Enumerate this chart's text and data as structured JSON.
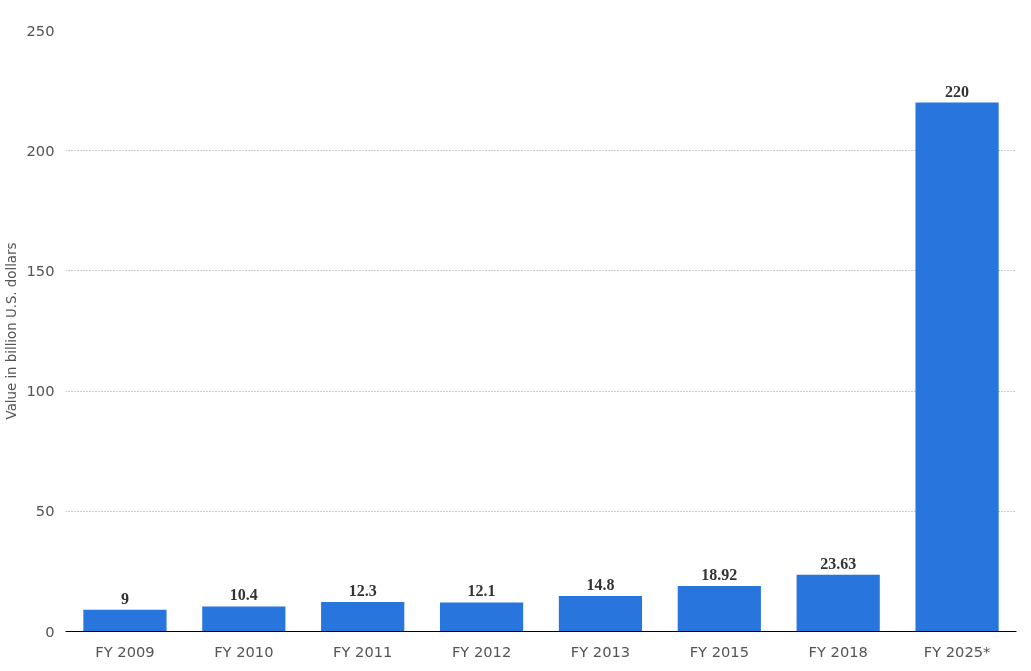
{
  "chart_data": {
    "type": "bar",
    "ylabel": "Value in billion U.S. dollars",
    "categories": [
      "FY 2009",
      "FY 2010",
      "FY 2011",
      "FY 2012",
      "FY 2013",
      "FY 2015",
      "FY 2018",
      "FY 2025*"
    ],
    "values": [
      9,
      10.4,
      12.3,
      12.1,
      14.8,
      18.92,
      23.63,
      220
    ],
    "color": "#2876dd",
    "ylim": [
      0,
      250
    ],
    "yticks": [
      0,
      50,
      100,
      150,
      200,
      250
    ],
    "grid": "y",
    "data_labels": true
  }
}
